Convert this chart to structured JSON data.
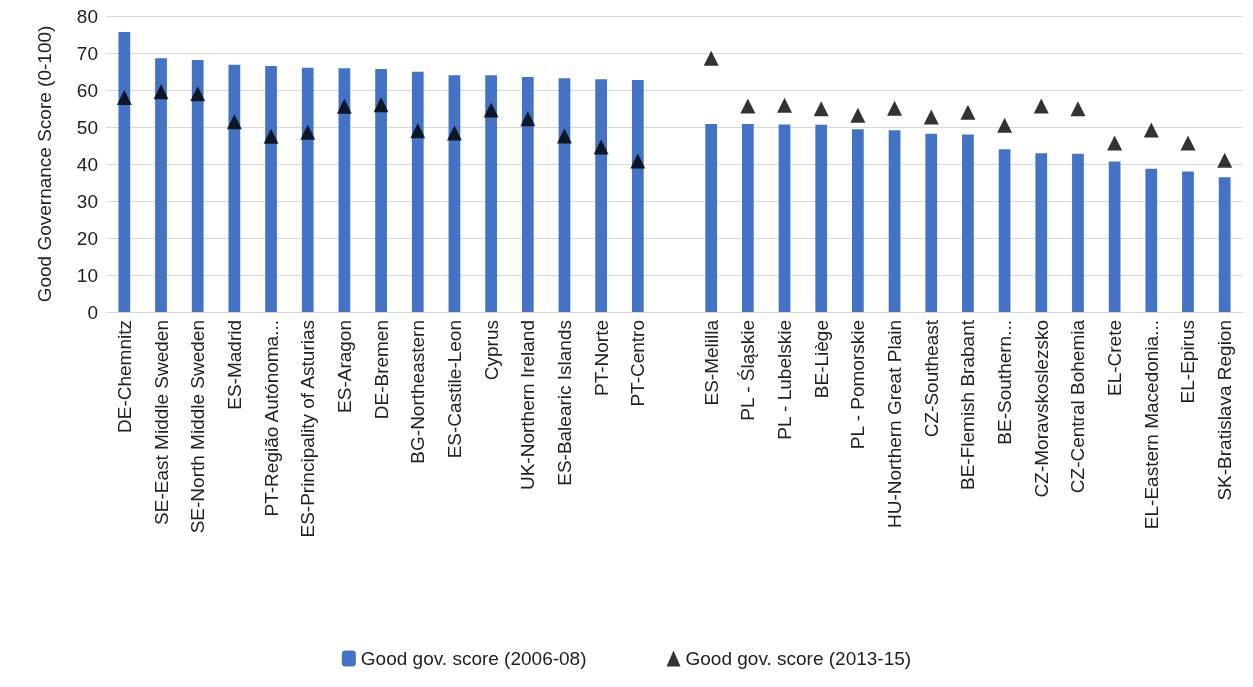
{
  "chart_data": {
    "type": "bar",
    "ylabel": "Good Governance Score (0-100)",
    "categories": [
      "DE-Chemnitz",
      "SE-East Middle Sweden",
      "SE-North Middle Sweden",
      "ES-Madrid",
      "PT-Região Autónoma...",
      "ES-Principality of Asturias",
      "ES-Aragon",
      "DE-Bremen",
      "BG-Northeastern",
      "ES-Castile-Leon",
      "Cyprus",
      "UK-Northern Ireland",
      "ES-Balearic Islands",
      "PT-Norte",
      "PT-Centro",
      null,
      "ES-Melilla",
      "PL - Śląskie",
      "PL - Lubelskie",
      "BE-Liège",
      "PL - Pomorskie",
      "HU-Northern Great Plain",
      "CZ-Southeast",
      "BE-Flemish Brabant",
      "BE-Southern...",
      "CZ-Moravskoslezsko",
      "CZ-Central Bohemia",
      "EL-Crete",
      "EL-Eastern Macedonia...",
      "EL-Epirus",
      "SK-Bratislava Region"
    ],
    "series": [
      {
        "name": "Good gov. score (2006-08)",
        "color": "#4472c4",
        "values": [
          75.7,
          68.6,
          68.1,
          66.8,
          66.5,
          66,
          65.9,
          65.7,
          64.9,
          64,
          64,
          63.5,
          63.2,
          62.9,
          62.7,
          null,
          50.8,
          50.8,
          50.7,
          50.6,
          49.4,
          49.1,
          48.2,
          48,
          44,
          42.9,
          42.8,
          40.7,
          38.7,
          38,
          36.4
        ]
      },
      {
        "name": "Good gov. score (2013-15)",
        "type": "scatter",
        "color": "#000000",
        "marker": "triangle",
        "values": [
          58,
          59.5,
          59,
          51.4,
          47.5,
          48.6,
          55.6,
          56,
          49,
          48.4,
          54.6,
          52.2,
          47.6,
          44.6,
          40.8,
          null,
          68.6,
          55.7,
          55.9,
          54.9,
          53.2,
          55.1,
          52.7,
          54,
          50.5,
          55.7,
          54.9,
          45.7,
          49.2,
          45.7,
          41
        ]
      }
    ],
    "ylim": [
      0,
      80
    ],
    "yticks": [
      0,
      10,
      20,
      30,
      40,
      50,
      60,
      70,
      80
    ],
    "grid": "y",
    "legend": "bottom"
  }
}
